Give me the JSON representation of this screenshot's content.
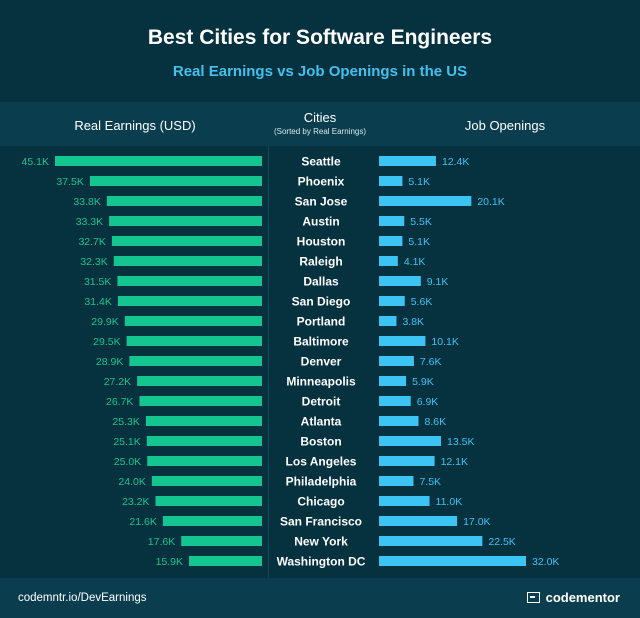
{
  "title": "Best Cities for Software Engineers",
  "subtitle": "Real Earnings vs Job Openings in the US",
  "headers": {
    "left": "Real Earnings (USD)",
    "center": "Cities",
    "center_sub": "(Sorted by Real Earnings)",
    "right": "Job Openings"
  },
  "footer": {
    "link": "codemntr.io/DevEarnings",
    "brand": "codementor"
  },
  "colors": {
    "earnings_bar": "#15c58f",
    "earnings_label": "#15c58f",
    "jobs_bar": "#3cc4f5",
    "jobs_label": "#3cc4f5",
    "background": "#06313f"
  },
  "chart_data": {
    "type": "bar",
    "categories": [
      "Seattle",
      "Phoenix",
      "San Jose",
      "Austin",
      "Houston",
      "Raleigh",
      "Dallas",
      "San Diego",
      "Portland",
      "Baltimore",
      "Denver",
      "Minneapolis",
      "Detroit",
      "Atlanta",
      "Boston",
      "Los Angeles",
      "Philadelphia",
      "Chicago",
      "San Francisco",
      "New York",
      "Washington DC"
    ],
    "series": [
      {
        "name": "Real Earnings (USD)",
        "values": [
          45.1,
          37.5,
          33.8,
          33.3,
          32.7,
          32.3,
          31.5,
          31.4,
          29.9,
          29.5,
          28.9,
          27.2,
          26.7,
          25.3,
          25.1,
          25.0,
          24.0,
          23.2,
          21.6,
          17.6,
          15.9
        ],
        "labels": [
          "45.1K",
          "37.5K",
          "33.8K",
          "33.3K",
          "32.7K",
          "32.3K",
          "31.5K",
          "31.4K",
          "29.9K",
          "29.5K",
          "28.9K",
          "27.2K",
          "26.7K",
          "25.3K",
          "25.1K",
          "25.0K",
          "24.0K",
          "23.2K",
          "21.6K",
          "17.6K",
          "15.9K"
        ]
      },
      {
        "name": "Job Openings",
        "values": [
          12.4,
          5.1,
          20.1,
          5.5,
          5.1,
          4.1,
          9.1,
          5.6,
          3.8,
          10.1,
          7.6,
          5.9,
          6.9,
          8.6,
          13.5,
          12.1,
          7.5,
          11.0,
          17.0,
          22.5,
          32.0
        ],
        "labels": [
          "12.4K",
          "5.1K",
          "20.1K",
          "5.5K",
          "5.1K",
          "4.1K",
          "9.1K",
          "5.6K",
          "3.8K",
          "10.1K",
          "7.6K",
          "5.9K",
          "6.9K",
          "8.6K",
          "13.5K",
          "12.1K",
          "7.5K",
          "11.0K",
          "17.0K",
          "22.5K",
          "32.0K"
        ]
      }
    ]
  }
}
